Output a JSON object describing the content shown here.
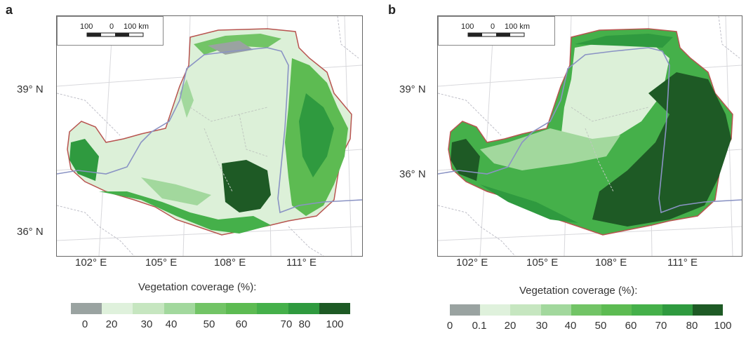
{
  "panels": [
    {
      "letter": "a",
      "lat_labels": [
        "39° N",
        "36° N"
      ],
      "lon_labels": [
        "102° E",
        "105° E",
        "108° E",
        "111° E"
      ],
      "scale": {
        "left": "100",
        "mid": "0",
        "right": "100 km"
      },
      "legend": {
        "title": "Vegetation coverage (%):",
        "ticks": [
          "0",
          "20",
          "30",
          "40",
          "50",
          "60",
          "70",
          "80",
          "100"
        ],
        "colors": [
          "#9aa3a1",
          "#dff1dc",
          "#c6e6c0",
          "#a2d89d",
          "#72c466",
          "#5dbb52",
          "#45b04a",
          "#2f9a3f",
          "#1e5a25"
        ]
      }
    },
    {
      "letter": "b",
      "lat_labels": [
        "39° N",
        "36° N"
      ],
      "lon_labels": [
        "102° E",
        "105° E",
        "108° E",
        "111° E"
      ],
      "scale": {
        "left": "100",
        "mid": "0",
        "right": "100 km"
      },
      "legend": {
        "title": "Vegetation coverage (%):",
        "ticks": [
          "0",
          "0.1",
          "20",
          "30",
          "40",
          "50",
          "60",
          "70",
          "80",
          "100"
        ],
        "colors": [
          "#9aa3a1",
          "#dff1dc",
          "#c6e6c0",
          "#a2d89d",
          "#72c466",
          "#5dbb52",
          "#45b04a",
          "#2f9a3f",
          "#1e5a25"
        ]
      }
    }
  ]
}
